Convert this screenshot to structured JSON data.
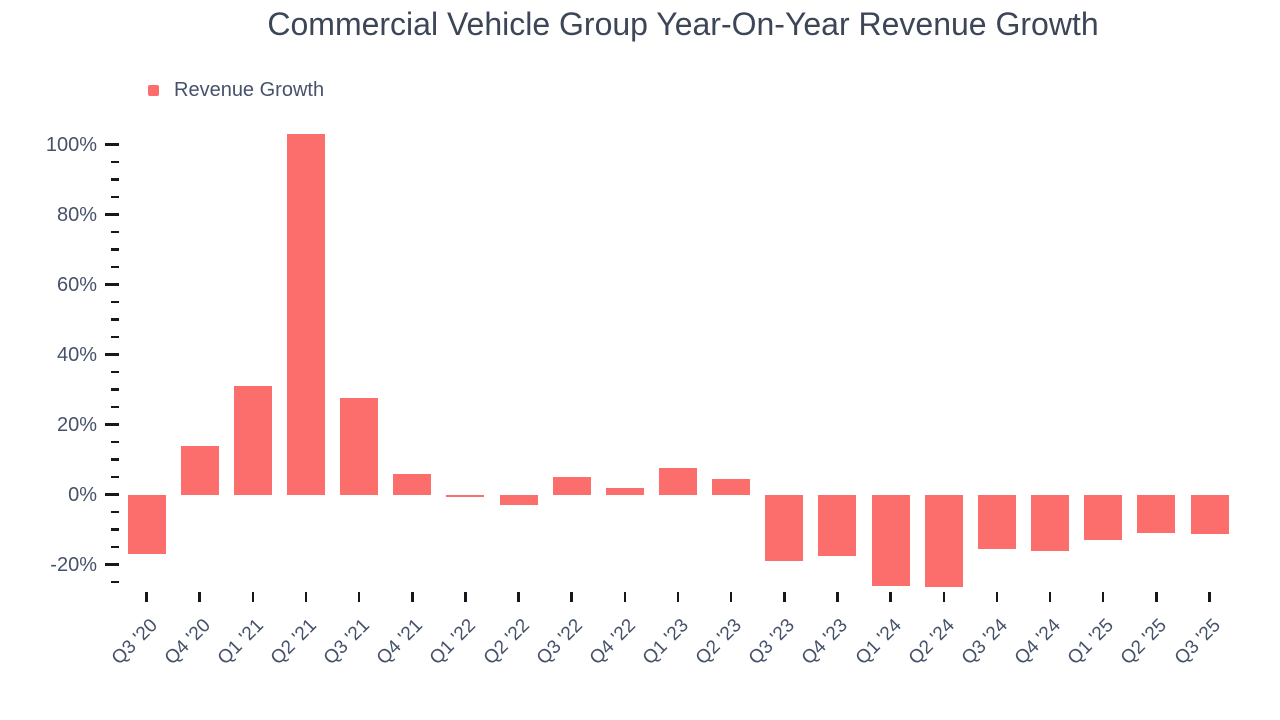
{
  "title": "Commercial Vehicle Group Year-On-Year Revenue Growth",
  "legend": {
    "label": "Revenue Growth",
    "position": "top-left"
  },
  "colors": {
    "bar": "#fb6e6c",
    "axis_text": "#46526a",
    "title_text": "#3c4657",
    "tick_mark": "#16181d",
    "background": "#ffffff"
  },
  "chart_data": {
    "type": "bar",
    "title": "Commercial Vehicle Group Year-On-Year Revenue Growth",
    "xlabel": "",
    "ylabel": "",
    "unit": "%",
    "grid": false,
    "legend_position": "top-left",
    "categories": [
      "Q3 '20",
      "Q4 '20",
      "Q1 '21",
      "Q2 '21",
      "Q3 '21",
      "Q4 '21",
      "Q1 '22",
      "Q2 '22",
      "Q3 '22",
      "Q4 '22",
      "Q1 '23",
      "Q2 '23",
      "Q3 '23",
      "Q4 '23",
      "Q1 '24",
      "Q2 '24",
      "Q3 '24",
      "Q4 '24",
      "Q1 '25",
      "Q2 '25",
      "Q3 '25"
    ],
    "series": [
      {
        "name": "Revenue Growth",
        "values": [
          -17,
          14,
          31,
          103,
          27.5,
          6,
          -0.5,
          -3,
          5,
          2,
          7.5,
          4.5,
          -19,
          -17.5,
          -26,
          -26.5,
          -15.5,
          -16,
          -13,
          -11,
          -11.3
        ]
      }
    ],
    "ylim": [
      -29,
      106
    ],
    "y_major_ticks": [
      100,
      80,
      60,
      40,
      20,
      0,
      -20
    ],
    "y_tick_labels": [
      "100%",
      "80%",
      "60%",
      "40%",
      "20%",
      "0%",
      "-20%"
    ],
    "y_minor_tick_step": 5,
    "y_minor_tick_range": [
      -25,
      100
    ]
  }
}
